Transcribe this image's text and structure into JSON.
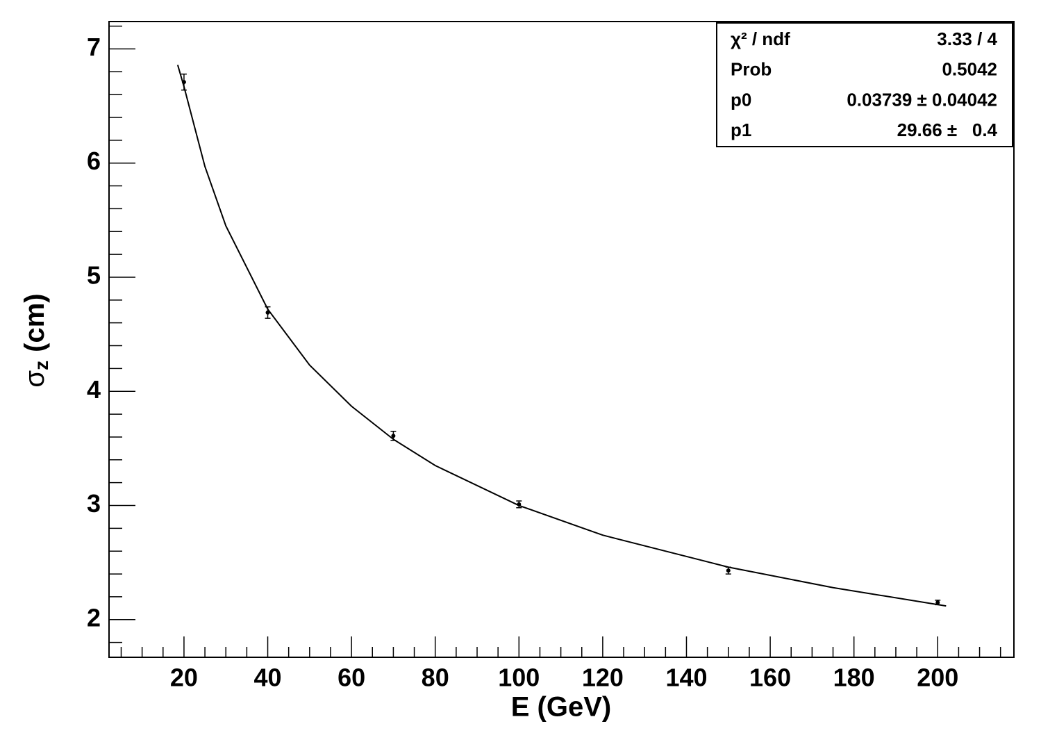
{
  "chart_data": {
    "type": "scatter",
    "x_label": "E (GeV)",
    "y_label": [
      "σ",
      "z",
      "(cm)"
    ],
    "xlim": [
      2.1,
      218.2
    ],
    "ylim": [
      1.67,
      7.24
    ],
    "xticks": [
      20,
      40,
      60,
      80,
      100,
      120,
      140,
      160,
      180,
      200
    ],
    "yticks": [
      2,
      3,
      4,
      5,
      6,
      7
    ],
    "xminor_ticks": [
      5,
      10,
      15,
      25,
      30,
      35,
      45,
      50,
      55,
      65,
      70,
      75,
      85,
      90,
      95,
      105,
      110,
      115,
      125,
      130,
      135,
      145,
      150,
      155,
      165,
      170,
      175,
      185,
      190,
      195,
      205,
      210,
      215
    ],
    "yminor_ticks": [
      1.8,
      2.2,
      2.4,
      2.6,
      2.8,
      3.2,
      3.4,
      3.6,
      3.8,
      4.2,
      4.4,
      4.6,
      4.8,
      5.2,
      5.4,
      5.6,
      5.8,
      6.2,
      6.4,
      6.6,
      6.8,
      7.2
    ],
    "color": "#000000",
    "points": {
      "x": [
        20,
        40,
        70,
        100,
        150,
        200
      ],
      "values": [
        6.71,
        4.69,
        3.61,
        3.01,
        2.43,
        2.15
      ],
      "errors": [
        0.07,
        0.05,
        0.04,
        0.03,
        0.03,
        0.02
      ]
    },
    "fit": {
      "x": [
        18.5,
        20,
        25,
        30,
        40,
        50,
        60,
        70,
        80,
        100,
        120,
        150,
        175,
        202
      ],
      "values": [
        6.86,
        6.67,
        5.97,
        5.45,
        4.72,
        4.23,
        3.87,
        3.58,
        3.35,
        3.0,
        2.74,
        2.46,
        2.28,
        2.12
      ]
    },
    "stats": [
      [
        "χ² / ndf",
        "3.33 / 4"
      ],
      [
        "Prob",
        "0.5042"
      ],
      [
        "p0",
        "0.03739 ± 0.04042"
      ],
      [
        "p1",
        "29.66 ±   0.4"
      ]
    ]
  }
}
